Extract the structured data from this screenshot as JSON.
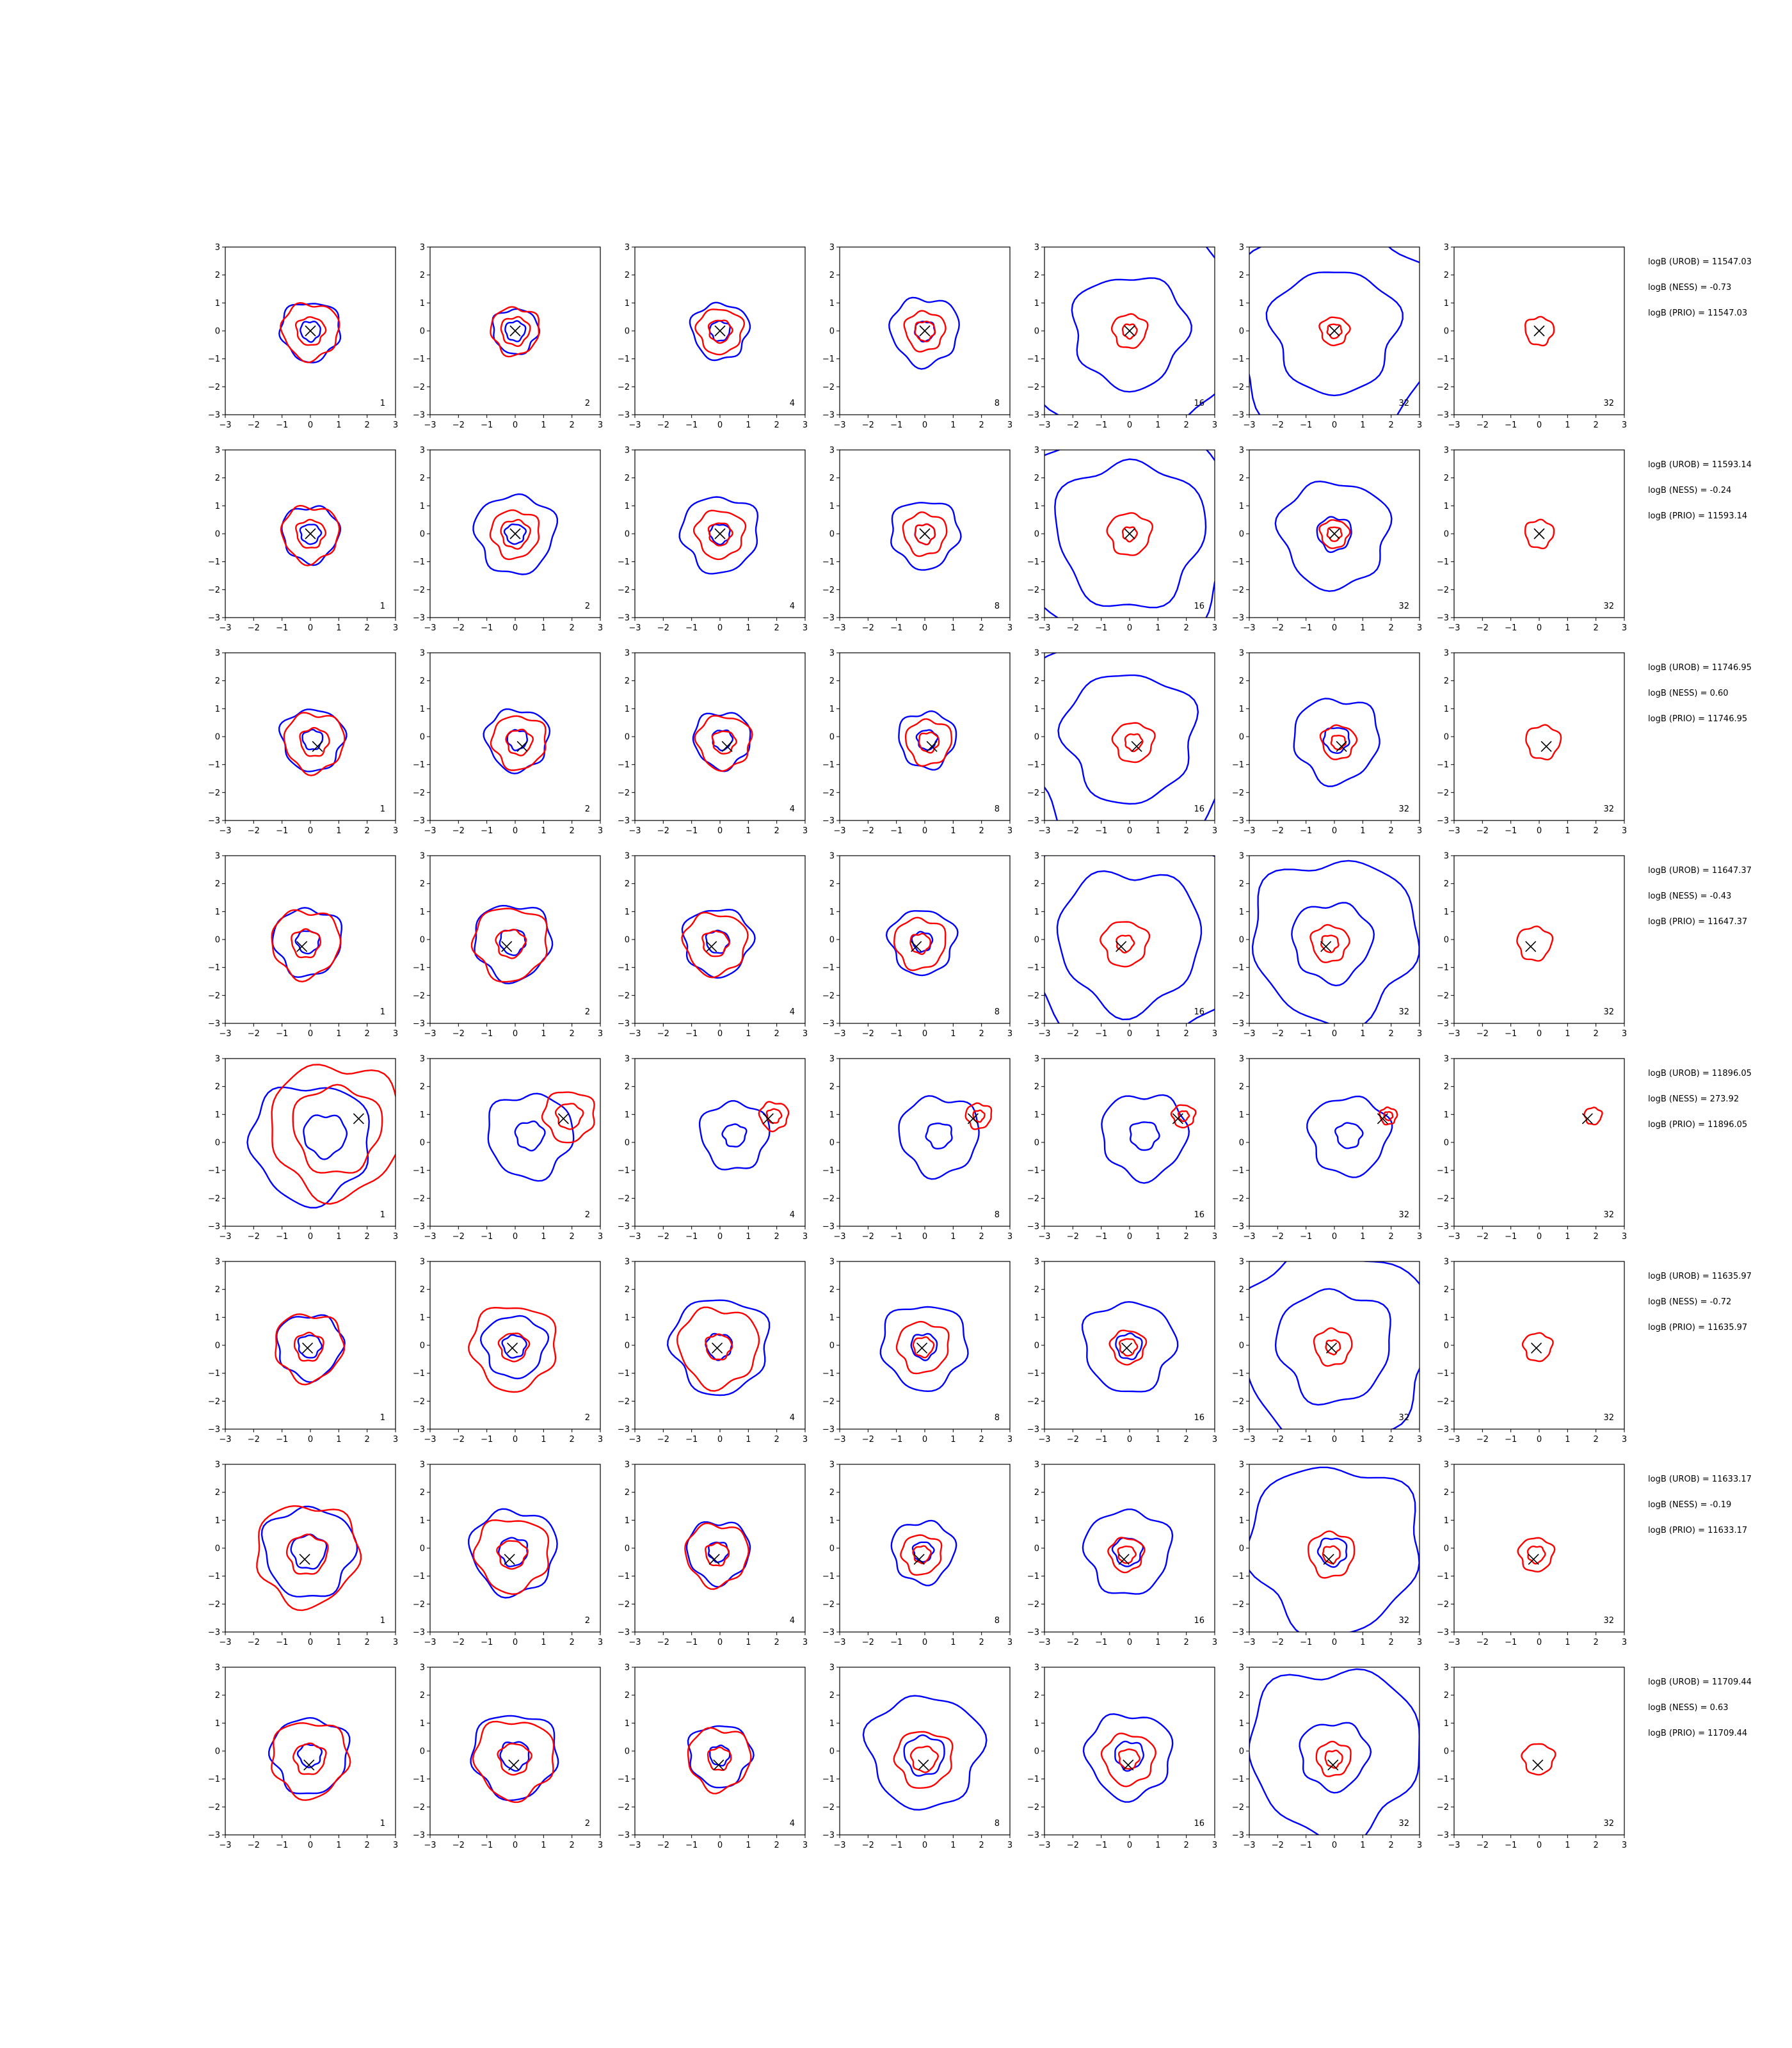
{
  "chart_data": {
    "type": "contour-grid",
    "xlim": [
      -3,
      3
    ],
    "ylim": [
      -3,
      3
    ],
    "ticks": [
      -3,
      -2,
      -1,
      0,
      1,
      2,
      3
    ],
    "tick_labels": [
      "−3",
      "−2",
      "−1",
      "0",
      "1",
      "2",
      "3"
    ],
    "grid": false,
    "colors": {
      "series_a": "#0000ff",
      "series_b": "#ff0000",
      "marker": "#000000"
    },
    "panel_labels": [
      "1",
      "2",
      "4",
      "8",
      "16",
      "32",
      "32"
    ],
    "rows": [
      {
        "marker": [
          0.0,
          0.0
        ],
        "stats": [
          "logB (UROB) = 11547.03",
          "logB (NESS) = -0.73",
          "logB (PRIO) = 11547.03"
        ],
        "panels": [
          {
            "blue": [
              1.05,
              0.35
            ],
            "red": [
              1.0,
              0.5
            ]
          },
          {
            "blue": [
              0.8,
              0.35
            ],
            "red": [
              0.85,
              0.5
            ]
          },
          {
            "blue": [
              1.0,
              0.35
            ],
            "red": [
              0.8,
              0.4
            ]
          },
          {
            "blue": [
              1.2,
              0.35
            ],
            "red": [
              0.7,
              0.35
            ]
          },
          {
            "blue": [
              4.0,
              2.0
            ],
            "red": [
              0.6,
              0.25
            ]
          },
          {
            "blue": [
              3.8,
              2.2
            ],
            "red": [
              0.5,
              0.25
            ]
          },
          {
            "blue": [],
            "red": [
              0.5
            ]
          }
        ]
      },
      {
        "marker": [
          0.0,
          0.0
        ],
        "stats": [
          "logB (UROB) = 11593.14",
          "logB (NESS) = -0.24",
          "logB (PRIO) = 11593.14"
        ],
        "panels": [
          {
            "blue": [
              1.0,
              0.35
            ],
            "red": [
              1.0,
              0.5
            ]
          },
          {
            "blue": [
              1.4,
              0.35
            ],
            "red": [
              0.85,
              0.5
            ]
          },
          {
            "blue": [
              1.35,
              0.35
            ],
            "red": [
              0.85,
              0.4
            ]
          },
          {
            "blue": [
              1.2,
              0.35
            ],
            "red": [
              0.75,
              0.35
            ]
          },
          {
            "blue": [
              4.0,
              2.6
            ],
            "red": [
              0.75,
              0.25
            ]
          },
          {
            "blue": [
              1.9,
              0.6
            ],
            "red": [
              0.5,
              0.25
            ]
          },
          {
            "blue": [],
            "red": [
              0.5
            ]
          }
        ]
      },
      {
        "marker": [
          0.25,
          -0.35
        ],
        "stats": [
          "logB (UROB) = 11746.95",
          "logB (NESS) = 0.60",
          "logB (PRIO) = 11746.95"
        ],
        "panels": [
          {
            "blue": [
              1.1,
              0.35
            ],
            "red": [
              1.05,
              0.5
            ]
          },
          {
            "blue": [
              1.1,
              0.35
            ],
            "red": [
              0.95,
              0.45
            ]
          },
          {
            "blue": [
              1.0,
              0.35
            ],
            "red": [
              0.95,
              0.4
            ]
          },
          {
            "blue": [
              1.0,
              0.35
            ],
            "red": [
              0.8,
              0.35
            ]
          },
          {
            "blue": [
              4.0,
              2.3
            ],
            "red": [
              0.7,
              0.3
            ]
          },
          {
            "blue": [
              1.5,
              0.45
            ],
            "red": [
              0.6,
              0.25
            ]
          },
          {
            "blue": [],
            "red": [
              0.6
            ]
          }
        ]
      },
      {
        "marker": [
          -0.3,
          -0.25
        ],
        "stats": [
          "logB (UROB) = 11647.37",
          "logB (NESS) = -0.43",
          "logB (PRIO) = 11647.37"
        ],
        "panels": [
          {
            "blue": [
              1.2,
              0.4
            ],
            "red": [
              1.2,
              0.5
            ]
          },
          {
            "blue": [
              1.35,
              0.45
            ],
            "red": [
              1.3,
              0.5
            ]
          },
          {
            "blue": [
              1.2,
              0.4
            ],
            "red": [
              1.1,
              0.45
            ]
          },
          {
            "blue": [
              1.15,
              0.35
            ],
            "red": [
              0.9,
              0.35
            ]
          },
          {
            "blue": [
              4.0,
              2.5
            ],
            "red": [
              0.8,
              0.3
            ]
          },
          {
            "blue": [
              2.9,
              1.4
            ],
            "red": [
              0.65,
              0.3
            ]
          },
          {
            "blue": [],
            "red": [
              0.6
            ]
          }
        ]
      },
      {
        "marker": [
          1.7,
          0.85
        ],
        "stats": [
          "logB (UROB) = 11896.05",
          "logB (NESS) = 273.92",
          "logB (PRIO) = 11896.05"
        ],
        "panels": [
          {
            "blue": [
              2.1,
              0.75
            ],
            "red": [
              2.35,
              1.55
            ]
          },
          {
            "blue": [
              1.5,
              0.5
            ],
            "red": [
              0.9,
              0.45
            ]
          },
          {
            "blue": [
              1.2,
              0.4
            ],
            "red": [
              0.5,
              0.25
            ]
          },
          {
            "blue": [
              1.4,
              0.45
            ],
            "red": [
              0.45,
              0.2
            ]
          },
          {
            "blue": [
              1.5,
              0.5
            ],
            "red": [
              0.4,
              0.18
            ]
          },
          {
            "blue": [
              1.4,
              0.45
            ],
            "red": [
              0.3,
              0.15
            ]
          },
          {
            "blue": [],
            "red": [
              0.3
            ]
          }
        ]
      },
      {
        "marker": [
          -0.1,
          -0.1
        ],
        "stats": [
          "logB (UROB) = 11635.97",
          "logB (NESS) = -0.72",
          "logB (PRIO) = 11635.97"
        ],
        "panels": [
          {
            "blue": [
              1.15,
              0.4
            ],
            "red": [
              1.2,
              0.5
            ]
          },
          {
            "blue": [
              1.1,
              0.4
            ],
            "red": [
              1.5,
              0.5
            ]
          },
          {
            "blue": [
              1.7,
              0.45
            ],
            "red": [
              1.4,
              0.45
            ]
          },
          {
            "blue": [
              1.5,
              0.45
            ],
            "red": [
              0.9,
              0.35
            ]
          },
          {
            "blue": [
              1.6,
              0.45
            ],
            "red": [
              0.6,
              0.3
            ]
          },
          {
            "blue": [
              3.5,
              2.0
            ],
            "red": [
              0.65,
              0.25
            ]
          },
          {
            "blue": [],
            "red": [
              0.5
            ]
          }
        ]
      },
      {
        "marker": [
          -0.2,
          -0.4
        ],
        "stats": [
          "logB (UROB) = 11633.17",
          "logB (NESS) = -0.19",
          "logB (PRIO) = 11633.17"
        ],
        "panels": [
          {
            "blue": [
              1.6,
              0.6
            ],
            "red": [
              1.8,
              0.7
            ]
          },
          {
            "blue": [
              1.5,
              0.5
            ],
            "red": [
              1.3,
              0.5
            ]
          },
          {
            "blue": [
              1.1,
              0.35
            ],
            "red": [
              1.1,
              0.4
            ]
          },
          {
            "blue": [
              1.1,
              0.35
            ],
            "red": [
              0.7,
              0.3
            ]
          },
          {
            "blue": [
              1.5,
              0.5
            ],
            "red": [
              0.6,
              0.3
            ]
          },
          {
            "blue": [
              3.0,
              0.5
            ],
            "red": [
              0.8,
              0.3
            ]
          },
          {
            "blue": [],
            "red": [
              0.6,
              0.3
            ]
          }
        ]
      },
      {
        "marker": [
          -0.05,
          -0.5
        ],
        "stats": [
          "logB (UROB) = 11709.44",
          "logB (NESS) = 0.63",
          "logB (PRIO) = 11709.44"
        ],
        "panels": [
          {
            "blue": [
              1.35,
              0.4
            ],
            "red": [
              1.35,
              0.55
            ]
          },
          {
            "blue": [
              1.5,
              0.5
            ],
            "red": [
              1.4,
              0.55
            ]
          },
          {
            "blue": [
              1.1,
              0.35
            ],
            "red": [
              1.1,
              0.4
            ]
          },
          {
            "blue": [
              2.0,
              0.7
            ],
            "red": [
              1.0,
              0.45
            ]
          },
          {
            "blue": [
              1.5,
              0.5
            ],
            "red": [
              0.9,
              0.35
            ]
          },
          {
            "blue": [
              3.0,
              1.2
            ],
            "red": [
              0.6,
              0.3
            ]
          },
          {
            "blue": [],
            "red": [
              0.55
            ]
          }
        ]
      }
    ]
  }
}
